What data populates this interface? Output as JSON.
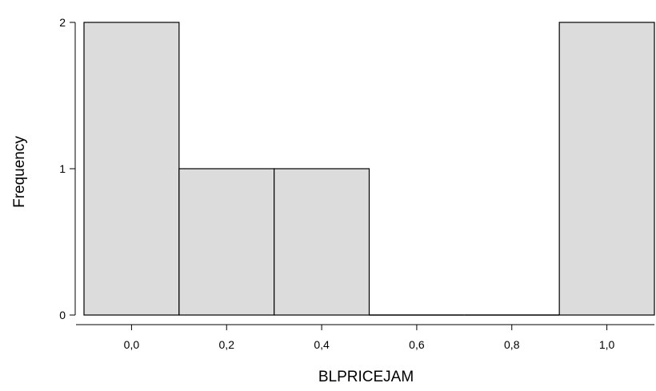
{
  "chart_data": {
    "type": "bar",
    "subtype": "histogram",
    "xlabel": "BLPRICEJAM",
    "ylabel": "Frequency",
    "bins": [
      {
        "start": -0.1,
        "end": 0.1,
        "count": 2
      },
      {
        "start": 0.1,
        "end": 0.3,
        "count": 1
      },
      {
        "start": 0.3,
        "end": 0.5,
        "count": 1
      },
      {
        "start": 0.5,
        "end": 0.7,
        "count": 0
      },
      {
        "start": 0.7,
        "end": 0.9,
        "count": 0
      },
      {
        "start": 0.9,
        "end": 1.1,
        "count": 2
      }
    ],
    "xlim": [
      -0.1,
      1.1
    ],
    "ylim": [
      0,
      2
    ],
    "x_ticks": [
      0.0,
      0.2,
      0.4,
      0.6,
      0.8,
      1.0
    ],
    "x_tick_labels": [
      "0,0",
      "0,2",
      "0,4",
      "0,6",
      "0,8",
      "1,0"
    ],
    "y_ticks": [
      0,
      1,
      2
    ],
    "y_tick_labels": [
      "0",
      "1",
      "2"
    ],
    "bar_color": "#dcdcdc",
    "edge_color": "#000000",
    "grid": false,
    "legend": "none"
  }
}
